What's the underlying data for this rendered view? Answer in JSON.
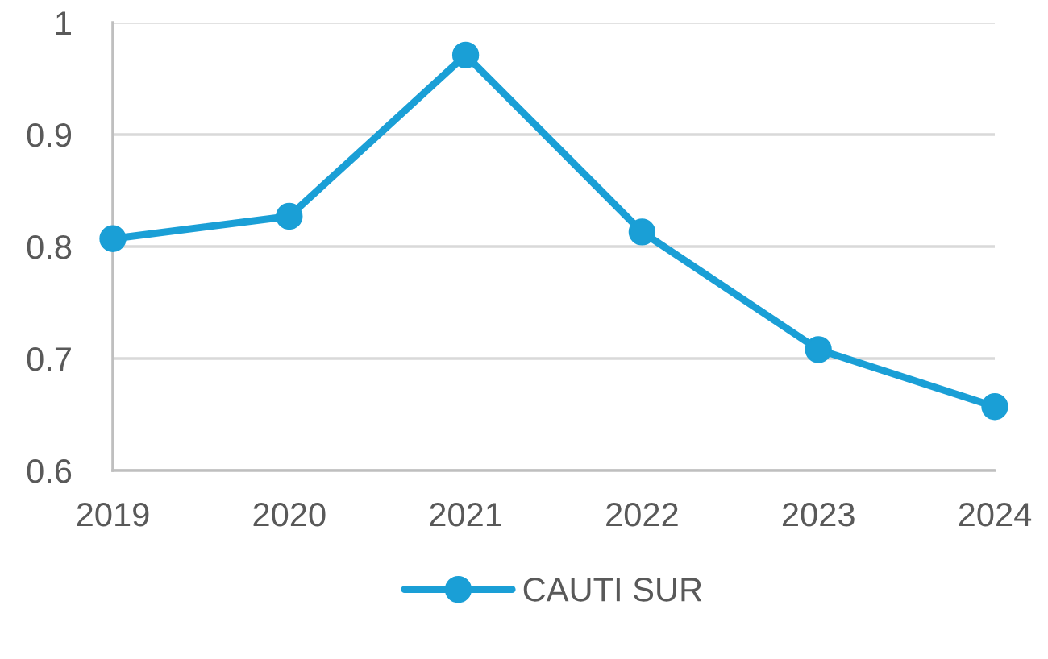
{
  "chart_data": {
    "type": "line",
    "categories": [
      "2019",
      "2020",
      "2021",
      "2022",
      "2023",
      "2024"
    ],
    "series": [
      {
        "name": "CAUTI SUR",
        "color": "#1a9fd6",
        "values": [
          0.807,
          0.827,
          0.971,
          0.813,
          0.708,
          0.657
        ]
      }
    ],
    "ylim": [
      0.6,
      1
    ],
    "yticks": [
      0.6,
      0.7,
      0.8,
      0.9,
      1
    ],
    "grid": "y",
    "legend": "bottom",
    "marker": "circle",
    "line_style": "solid"
  }
}
